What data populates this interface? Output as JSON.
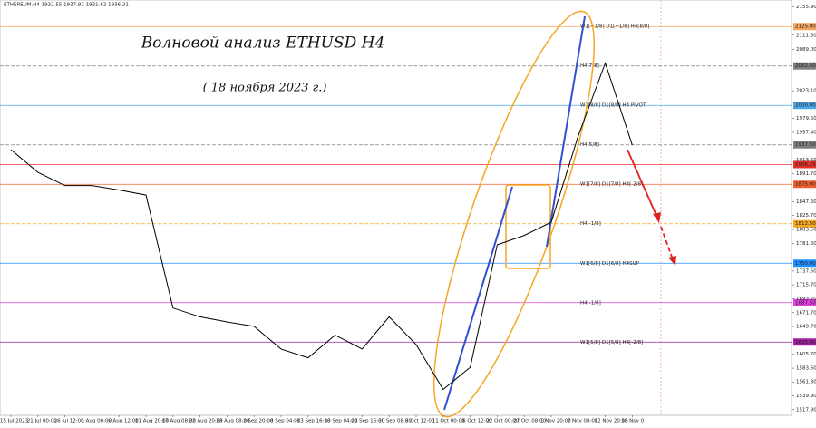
{
  "chart_data": {
    "type": "line",
    "header": "ETHEREUM,H4  1932.55 1937.92 1931.62 1936.21",
    "title": "Волновой анализ ETHUSD H4",
    "subtitle": "( 18 ноября 2023 г.)",
    "categories": [
      "15 Jul 2023",
      "21 Jul 00:00",
      "26 Jul 12:00",
      "1 Aug 00:00",
      "6 Aug 12:00",
      "11 Aug 20:00",
      "17 Aug 08:00",
      "22 Aug 20:00",
      "28 Aug 08:00",
      "2 Sep 20:00",
      "8 Sep 04:00",
      "13 Sep 16:00",
      "19 Sep 04:00",
      "24 Sep 16:00",
      "30 Sep 08:00",
      "5 Oct 12:00",
      "11 Oct 00:00",
      "16 Oct 12:00",
      "22 Oct 00:00",
      "27 Oct 08:00",
      "1 Nov 20:00",
      "7 Nov 08:00",
      "12 Nov 20:00",
      "18 Nov 0"
    ],
    "series": [
      {
        "color": "#000000",
        "values": [
          1930,
          1894,
          1873,
          1873,
          1866,
          1858,
          1679,
          1665,
          1657,
          1650,
          1614,
          1600,
          1636,
          1614,
          1665,
          1621,
          1550,
          1585,
          1779,
          1794,
          1815,
          1952,
          2067,
          1937
        ]
      }
    ],
    "ylim": [
      1509,
      2167
    ],
    "yticks": [
      {
        "value": 2155.9,
        "label": "2155.90"
      },
      {
        "value": 2111.3,
        "label": "2111.30"
      },
      {
        "value": 2089,
        "label": "2089.00"
      },
      {
        "value": 2023.1,
        "label": "2023.10"
      },
      {
        "value": 1979.5,
        "label": "1979.50"
      },
      {
        "value": 1957.4,
        "label": "1957.40"
      },
      {
        "value": 1913.6,
        "label": "1913.60"
      },
      {
        "value": 1891.7,
        "label": "1891.70"
      },
      {
        "value": 1847.6,
        "label": "1847.60"
      },
      {
        "value": 1825.7,
        "label": "1825.70"
      },
      {
        "value": 1803.5,
        "label": "1803.50"
      },
      {
        "value": 1781.6,
        "label": "1781.60"
      },
      {
        "value": 1737.6,
        "label": "1737.60"
      },
      {
        "value": 1715.7,
        "label": "1715.70"
      },
      {
        "value": 1693.7,
        "label": "1693.70"
      },
      {
        "value": 1671.7,
        "label": "1671.70"
      },
      {
        "value": 1649.7,
        "label": "1649.70"
      },
      {
        "value": 1605.7,
        "label": "1605.70"
      },
      {
        "value": 1583.6,
        "label": "1583.60"
      },
      {
        "value": 1561.8,
        "label": "1561.80"
      },
      {
        "value": 1539.9,
        "label": "1539.90"
      },
      {
        "value": 1517.9,
        "label": "1517.90"
      }
    ],
    "levels": [
      {
        "value": 2125,
        "label": "2125.00",
        "text": "W1[+1/8] D1[+1/8] H4[8/8]",
        "color": "#f4a460"
      },
      {
        "value": 2062.5,
        "label": "2062.50",
        "text": "H4[7/8]",
        "color": "#808080"
      },
      {
        "value": 2000,
        "label": "2000.00",
        "text": "W1[8/8] D1[8/8] H4 PIVOT",
        "color": "#4da6e8"
      },
      {
        "value": 1937.5,
        "label": "1937.50",
        "text": "H4[5/8]",
        "color": "#808080"
      },
      {
        "value": 1906.25,
        "label": "1906.25",
        "color": "#e8302a"
      },
      {
        "value": 1875,
        "label": "1875.00",
        "text": "W1[7/8] D1[7/8] H4[-2/8]",
        "color": "#f06030"
      },
      {
        "value": 1812.5,
        "label": "1812.50",
        "text": "H4[-1/8]",
        "color": "#f5a623"
      },
      {
        "value": 1750,
        "label": "1750.00",
        "text": "W1[6/8] D1[6/8] H4SUP",
        "color": "#1e90ff"
      },
      {
        "value": 1687.5,
        "label": "1687.50",
        "text": "H4[-1/8]",
        "color": "#e040e0"
      },
      {
        "value": 1625,
        "label": "1625.00",
        "text": "W1[5/8] D1[5/8] H4[-2/8]",
        "color": "#a020a0"
      }
    ]
  }
}
